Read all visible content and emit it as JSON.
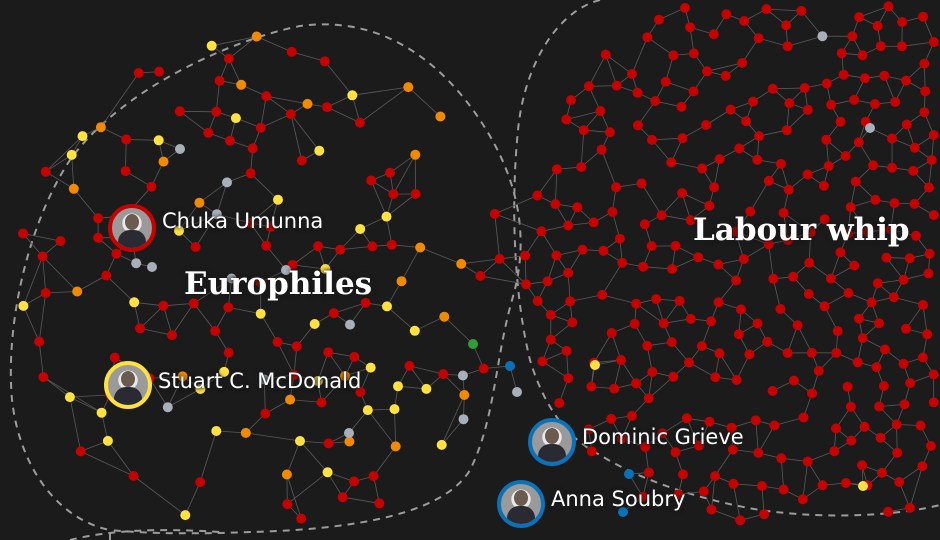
{
  "colors": {
    "background": "#1b1b1b",
    "edge": "#5a5a5a",
    "boundary": "#9c9c9c",
    "labour": "#c70000",
    "conservative": "#0a72b8",
    "snp": "#ffe23f",
    "libdem": "#f28a00",
    "green": "#2f9e34",
    "independent": "#a7b0b8"
  },
  "clusters": [
    {
      "id": "europhiles",
      "label": "Europhiles"
    },
    {
      "id": "labour-whip",
      "label": "Labour whip"
    }
  ],
  "people": [
    {
      "id": "chuka-umunna",
      "name": "Chuka Umunna",
      "party": "labour"
    },
    {
      "id": "stuart-c-mcdonald",
      "name": "Stuart C. McDonald",
      "party": "snp"
    },
    {
      "id": "dominic-grieve",
      "name": "Dominic Grieve",
      "party": "conservative"
    },
    {
      "id": "anna-soubry",
      "name": "Anna Soubry",
      "party": "conservative"
    }
  ]
}
